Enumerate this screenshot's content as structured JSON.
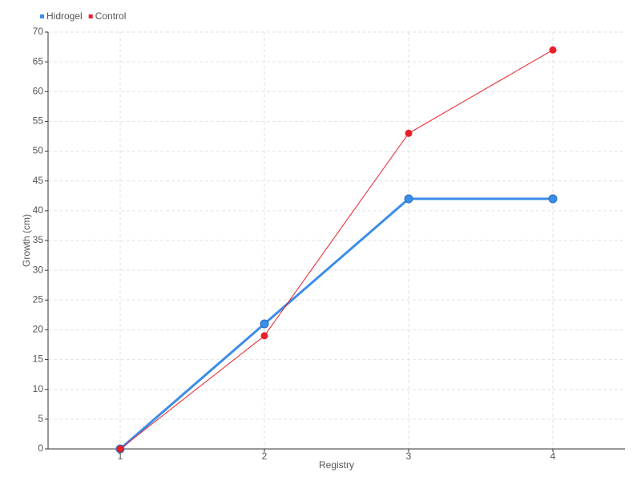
{
  "chart_data": {
    "type": "line",
    "categories": [
      "1",
      "2",
      "3",
      "4"
    ],
    "series": [
      {
        "name": "Hidrogel",
        "color": "#3b8de8",
        "values": [
          0,
          21,
          42,
          42
        ]
      },
      {
        "name": "Control",
        "color": "#e8202a",
        "values": [
          0,
          19,
          53,
          67
        ]
      }
    ],
    "x_label": "Registry",
    "y_label": "Growth (cm)",
    "ylim": [
      0,
      70
    ],
    "yticks": [
      0,
      5,
      10,
      15,
      20,
      25,
      30,
      35,
      40,
      45,
      50,
      55,
      60,
      65,
      70
    ],
    "grid": true,
    "legend": "top-left"
  }
}
